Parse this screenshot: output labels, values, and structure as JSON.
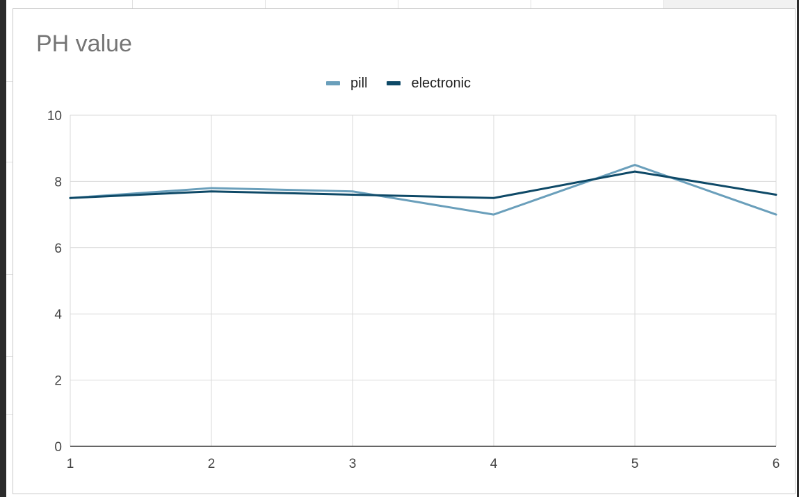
{
  "chart": {
    "title": "PH value",
    "colors": {
      "pill": "#6a9fbb",
      "electronic": "#0e4967",
      "grid": "#d9d9d9",
      "baseline": "#333333"
    }
  },
  "chart_data": {
    "type": "line",
    "title": "PH value",
    "xlabel": "",
    "ylabel": "",
    "x": [
      1,
      2,
      3,
      4,
      5,
      6
    ],
    "xlim": [
      1,
      6
    ],
    "ylim": [
      0,
      10
    ],
    "yticks": [
      0,
      2,
      4,
      6,
      8,
      10
    ],
    "grid": true,
    "legend_position": "top",
    "series": [
      {
        "name": "pill",
        "values": [
          7.5,
          7.8,
          7.7,
          7.0,
          8.5,
          7.0
        ]
      },
      {
        "name": "electronic",
        "values": [
          7.5,
          7.7,
          7.6,
          7.5,
          8.3,
          7.6
        ]
      }
    ]
  }
}
